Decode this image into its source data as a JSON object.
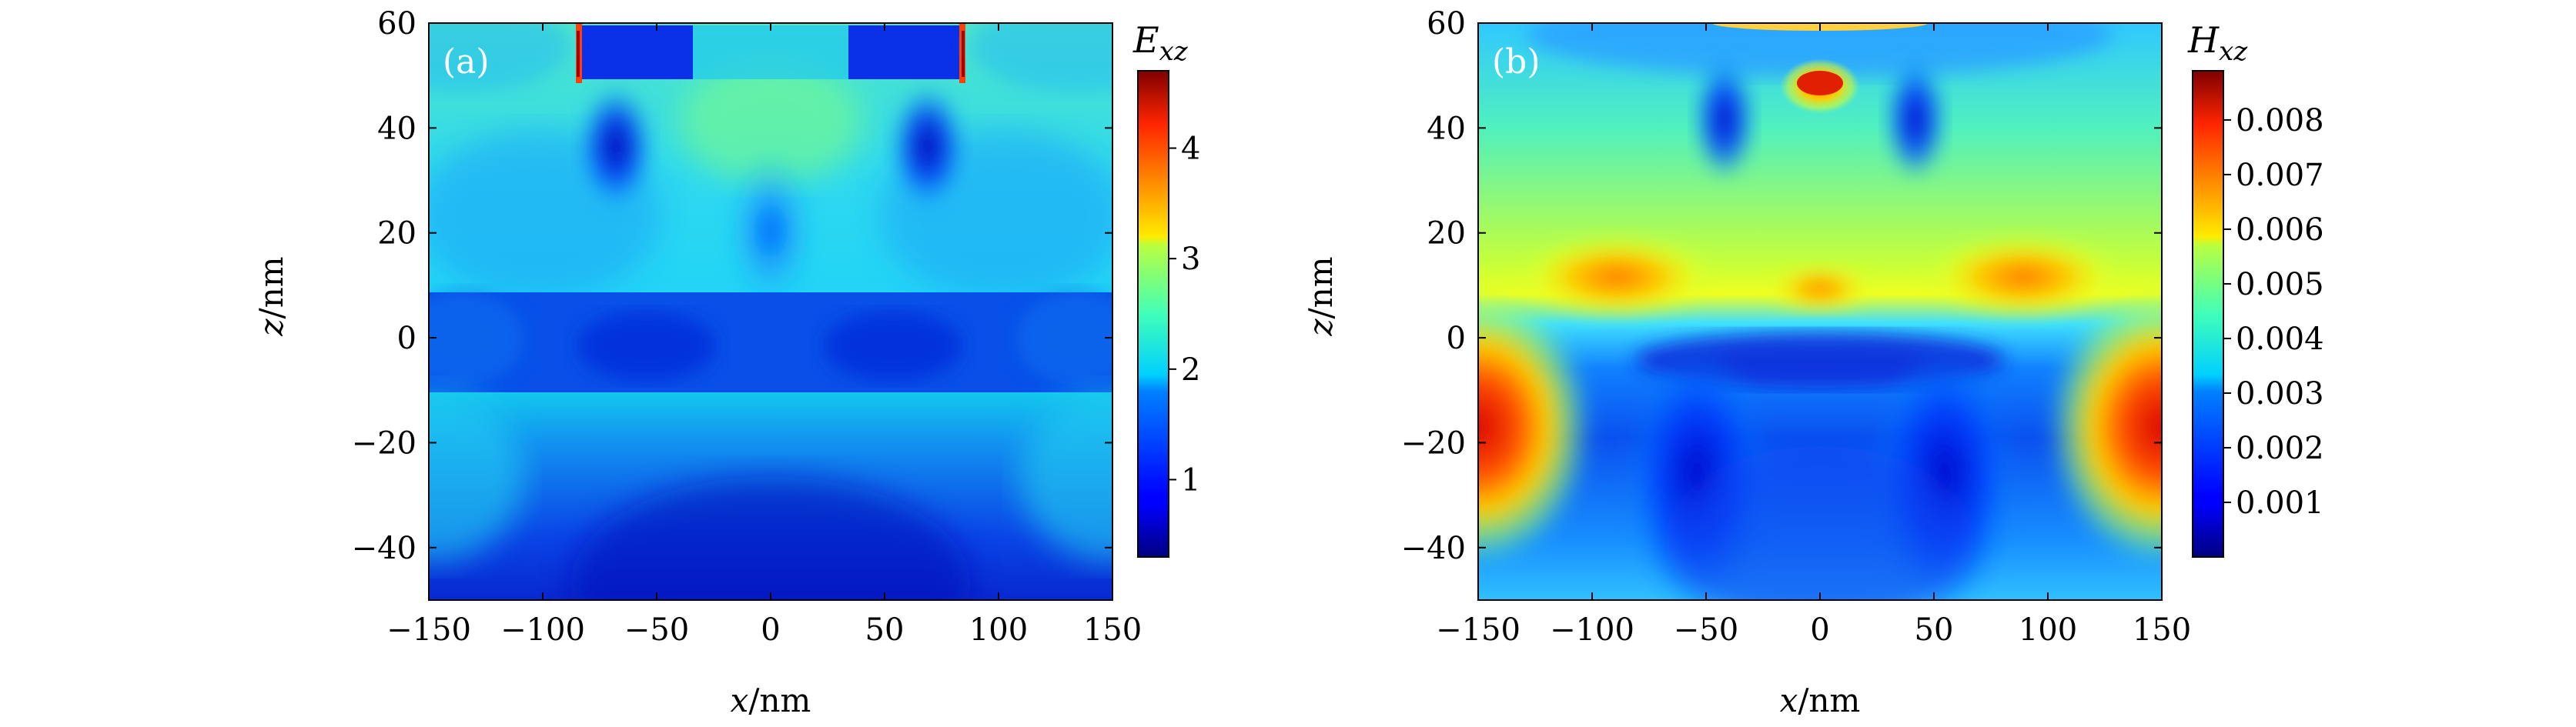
{
  "figure": {
    "panel_labels": [
      "(a)",
      "(b)"
    ]
  },
  "chart_data": [
    {
      "type": "heatmap",
      "panel": "(a)",
      "colorbar_label_main": "E",
      "colorbar_label_sub": "xz",
      "xlabel_var": "x",
      "xlabel_unit": "/nm",
      "ylabel_var": "z",
      "ylabel_unit": "/nm",
      "xlim": [
        -150,
        150
      ],
      "ylim": [
        -50,
        60
      ],
      "xticks": [
        -150,
        -100,
        -50,
        0,
        50,
        100,
        150
      ],
      "xtick_labels": [
        "−150",
        "−100",
        "−50",
        "0",
        "50",
        "100",
        "150"
      ],
      "yticks": [
        -40,
        -20,
        0,
        20,
        40,
        60
      ],
      "ytick_labels": [
        "−40",
        "−20",
        "0",
        "20",
        "40",
        "60"
      ],
      "colorbar_range": [
        0.3,
        4.7
      ],
      "colorbar_ticks": [
        1,
        2,
        3,
        4
      ],
      "colorbar_tick_labels": [
        "1",
        "2",
        "3",
        "4"
      ],
      "colormap": "jet",
      "layers": [
        {
          "region": "bottom substrate",
          "z_range": [
            -50,
            -10
          ],
          "level": 1.2
        },
        {
          "region": "middle layer",
          "z_range": [
            -10,
            9
          ],
          "level": 0.95
        },
        {
          "region": "upper region",
          "z_range": [
            9,
            50
          ],
          "level": 2.0
        },
        {
          "region": "top bars",
          "z_range": [
            50,
            60
          ],
          "x_ranges": [
            [
              -85,
              -35
            ],
            [
              35,
              85
            ]
          ],
          "level": 0.9
        }
      ],
      "hotspots": [
        {
          "x": -85,
          "z": 50,
          "level": 4.7
        },
        {
          "x": 85,
          "z": 50,
          "level": 4.7
        },
        {
          "x": -85,
          "z": 60,
          "level": 4.7
        },
        {
          "x": 85,
          "z": 60,
          "level": 4.7
        }
      ]
    },
    {
      "type": "heatmap",
      "panel": "(b)",
      "colorbar_label_main": "H",
      "colorbar_label_sub": "xz",
      "xlabel_var": "x",
      "xlabel_unit": "/nm",
      "ylabel_var": "z",
      "ylabel_unit": "/nm",
      "xlim": [
        -150,
        150
      ],
      "ylim": [
        -50,
        60
      ],
      "xticks": [
        -150,
        -100,
        -50,
        0,
        50,
        100,
        150
      ],
      "xtick_labels": [
        "−150",
        "−100",
        "−50",
        "0",
        "50",
        "100",
        "150"
      ],
      "yticks": [
        -40,
        -20,
        0,
        20,
        40,
        60
      ],
      "ytick_labels": [
        "−40",
        "−20",
        "0",
        "20",
        "40",
        "60"
      ],
      "colorbar_range": [
        0.0,
        0.0089
      ],
      "colorbar_ticks": [
        0.001,
        0.002,
        0.003,
        0.004,
        0.005,
        0.006,
        0.007,
        0.008
      ],
      "colorbar_tick_labels": [
        "0.001",
        "0.002",
        "0.003",
        "0.004",
        "0.005",
        "0.006",
        "0.007",
        "0.008"
      ],
      "colormap": "jet",
      "hotspots": [
        {
          "x": -150,
          "z": -15,
          "level": 0.0085
        },
        {
          "x": 150,
          "z": -15,
          "level": 0.0085
        },
        {
          "x": 0,
          "z": 48,
          "level": 0.008
        },
        {
          "x": -85,
          "z": 10,
          "level": 0.0065
        },
        {
          "x": 85,
          "z": 10,
          "level": 0.0065
        }
      ]
    }
  ]
}
